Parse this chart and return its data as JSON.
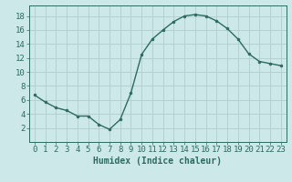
{
  "x": [
    0,
    1,
    2,
    3,
    4,
    5,
    6,
    7,
    8,
    9,
    10,
    11,
    12,
    13,
    14,
    15,
    16,
    17,
    18,
    19,
    20,
    21,
    22,
    23
  ],
  "y": [
    6.7,
    5.7,
    4.9,
    4.5,
    3.7,
    3.7,
    2.5,
    1.8,
    3.2,
    7.0,
    12.5,
    14.7,
    16.0,
    17.2,
    18.0,
    18.2,
    18.0,
    17.3,
    16.2,
    14.7,
    12.6,
    11.5,
    11.2,
    10.9
  ],
  "line_color": "#2d6b5e",
  "marker": "o",
  "marker_size": 2.0,
  "bg_color": "#cce8e8",
  "grid_color": "#b0cccc",
  "xlabel": "Humidex (Indice chaleur)",
  "xlim": [
    -0.5,
    23.5
  ],
  "ylim": [
    0,
    19.5
  ],
  "yticks": [
    2,
    4,
    6,
    8,
    10,
    12,
    14,
    16,
    18
  ],
  "xticks": [
    0,
    1,
    2,
    3,
    4,
    5,
    6,
    7,
    8,
    9,
    10,
    11,
    12,
    13,
    14,
    15,
    16,
    17,
    18,
    19,
    20,
    21,
    22,
    23
  ],
  "label_fontsize": 7,
  "tick_fontsize": 6.5
}
